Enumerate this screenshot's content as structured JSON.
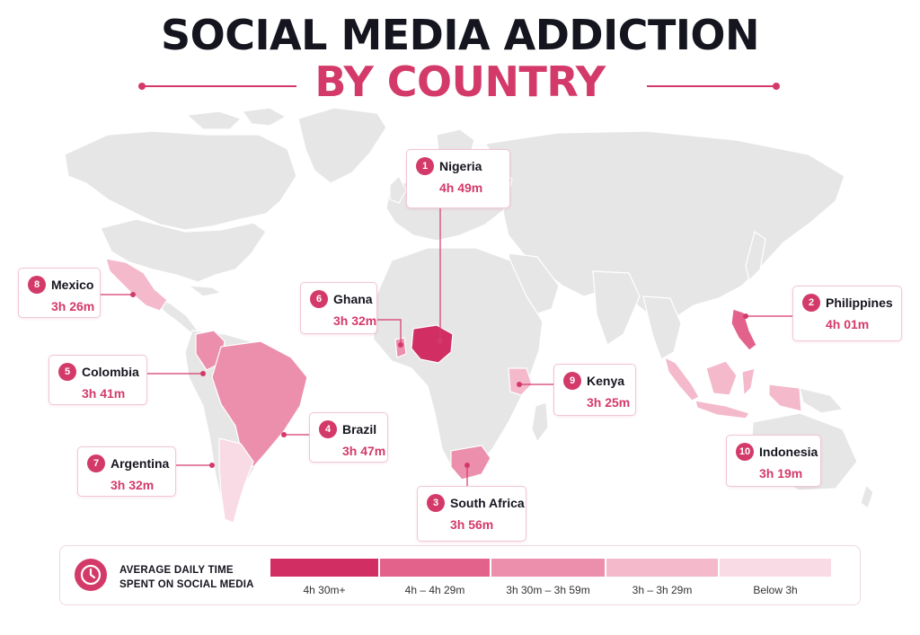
{
  "title": {
    "line1": "SOCIAL MEDIA ADDICTION",
    "line2": "BY COUNTRY"
  },
  "colors": {
    "accent": "#d33a6a",
    "tier_4h30_plus": "#d12f63",
    "tier_4h_4h29": "#e2628c",
    "tier_3h30_3h59": "#ec8fad",
    "tier_3h_3h29": "#f4b9cb",
    "tier_below_3h": "#f8dbe4",
    "land": "#e6e6e6"
  },
  "countries": [
    {
      "rank": "1",
      "name": "Nigeria",
      "time": "4h 49m"
    },
    {
      "rank": "2",
      "name": "Philippines",
      "time": "4h 01m"
    },
    {
      "rank": "3",
      "name": "South Africa",
      "time": "3h 56m"
    },
    {
      "rank": "4",
      "name": "Brazil",
      "time": "3h 47m"
    },
    {
      "rank": "5",
      "name": "Colombia",
      "time": "3h 41m"
    },
    {
      "rank": "6",
      "name": "Ghana",
      "time": "3h 32m"
    },
    {
      "rank": "7",
      "name": "Argentina",
      "time": "3h 32m"
    },
    {
      "rank": "8",
      "name": "Mexico",
      "time": "3h 26m"
    },
    {
      "rank": "9",
      "name": "Kenya",
      "time": "3h 25m"
    },
    {
      "rank": "10",
      "name": "Indonesia",
      "time": "3h 19m"
    }
  ],
  "legend": {
    "icon": "clock-icon",
    "title_line1": "AVERAGE DAILY TIME",
    "title_line2": "SPENT ON SOCIAL MEDIA",
    "tiers": [
      "4h 30m+",
      "4h – 4h 29m",
      "3h 30m – 3h 59m",
      "3h – 3h 29m",
      "Below 3h"
    ]
  }
}
